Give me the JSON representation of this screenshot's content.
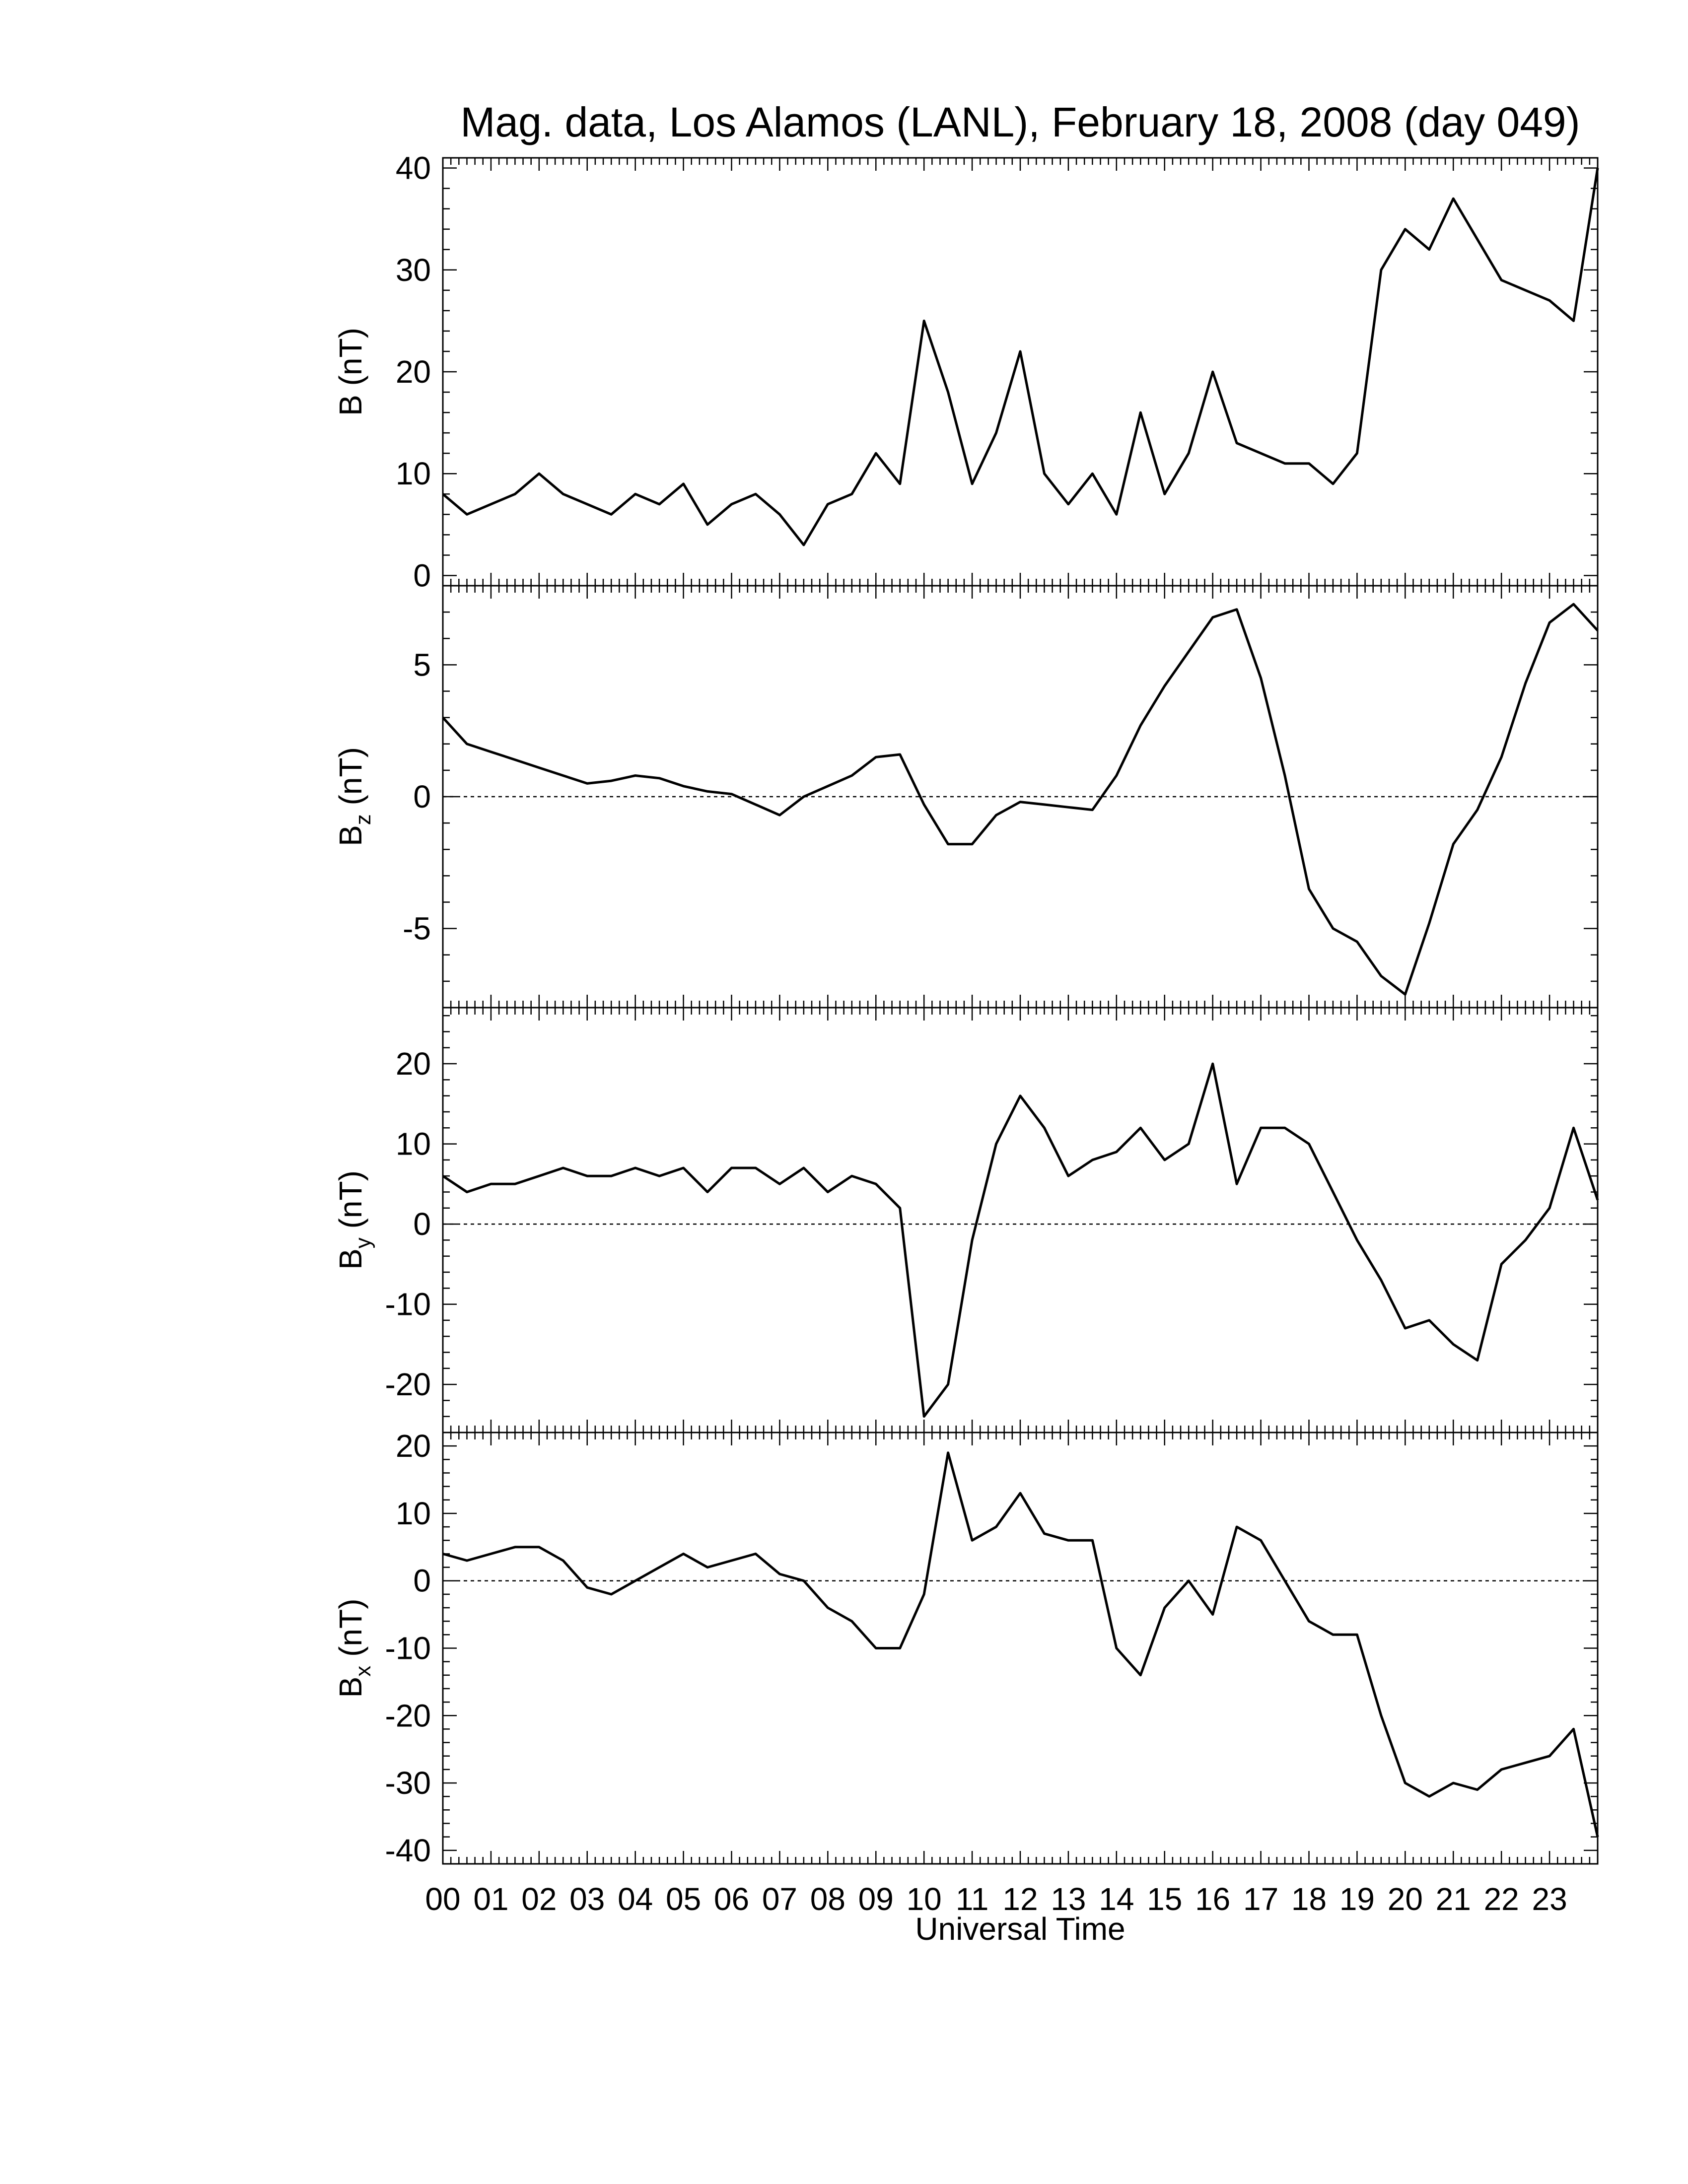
{
  "figure": {
    "title": "Mag. data, Los Alamos (LANL), February 18, 2008 (day 049)",
    "xlabel": "Universal Time"
  },
  "chart_data": [
    {
      "type": "line",
      "panel": "B",
      "ylabel": "B (nT)",
      "ylabel_main": "B (nT)",
      "ylabel_sub": "",
      "ylim": [
        -1,
        41
      ],
      "xlim": [
        0,
        24
      ],
      "yticks": [
        0,
        10,
        20,
        30,
        40
      ],
      "zero_line": false,
      "x": [
        0,
        0.5,
        1,
        1.5,
        2,
        2.5,
        3,
        3.5,
        4,
        4.5,
        5,
        5.5,
        6,
        6.5,
        7,
        7.5,
        8,
        8.5,
        9,
        9.5,
        10,
        10.5,
        11,
        11.5,
        12,
        12.5,
        13,
        13.5,
        14,
        14.5,
        15,
        15.5,
        16,
        16.5,
        17,
        17.5,
        18,
        18.5,
        19,
        19.5,
        20,
        20.5,
        21,
        21.5,
        22,
        22.5,
        23,
        23.5,
        24
      ],
      "series": [
        {
          "values": [
            8,
            6,
            7,
            8,
            10,
            8,
            7,
            6,
            8,
            7,
            9,
            5,
            7,
            8,
            6,
            3,
            7,
            8,
            12,
            9,
            25,
            18,
            9,
            14,
            22,
            10,
            7,
            10,
            6,
            16,
            8,
            12,
            20,
            13,
            12,
            11,
            11,
            9,
            12,
            30,
            34,
            32,
            37,
            33,
            29,
            28,
            27,
            25,
            40
          ]
        }
      ]
    },
    {
      "type": "line",
      "panel": "Bz",
      "ylabel": "Bz (nT)",
      "ylabel_main": "B",
      "ylabel_sub": "z",
      "ylabel_rest": " (nT)",
      "ylim": [
        -8,
        8
      ],
      "xlim": [
        0,
        24
      ],
      "yticks": [
        -5,
        0,
        5
      ],
      "zero_line": true,
      "x": [
        0,
        0.5,
        1,
        1.5,
        2,
        2.5,
        3,
        3.5,
        4,
        4.5,
        5,
        5.5,
        6,
        6.5,
        7,
        7.5,
        8,
        8.5,
        9,
        9.5,
        10,
        10.5,
        11,
        11.5,
        12,
        12.5,
        13,
        13.5,
        14,
        14.5,
        15,
        15.5,
        16,
        16.5,
        17,
        17.5,
        18,
        18.5,
        19,
        19.5,
        20,
        20.5,
        21,
        21.5,
        22,
        22.5,
        23,
        23.5,
        24
      ],
      "series": [
        {
          "values": [
            3,
            2,
            1.7,
            1.4,
            1.1,
            0.8,
            0.5,
            0.6,
            0.8,
            0.7,
            0.4,
            0.2,
            0.1,
            -0.3,
            -0.7,
            0,
            0.4,
            0.8,
            1.5,
            1.6,
            -0.3,
            -1.8,
            -1.8,
            -0.7,
            -0.2,
            -0.3,
            -0.4,
            -0.5,
            0.8,
            2.7,
            4.2,
            5.5,
            6.8,
            7.1,
            4.5,
            0.8,
            -3.5,
            -5,
            -5.5,
            -6.8,
            -7.5,
            -4.8,
            -1.8,
            -0.5,
            1.5,
            4.3,
            6.6,
            7.3,
            6.3
          ]
        }
      ]
    },
    {
      "type": "line",
      "panel": "By",
      "ylabel": "By (nT)",
      "ylabel_main": "B",
      "ylabel_sub": "y",
      "ylabel_rest": " (nT)",
      "ylim": [
        -26,
        27
      ],
      "xlim": [
        0,
        24
      ],
      "yticks": [
        -20,
        -10,
        0,
        10,
        20
      ],
      "zero_line": true,
      "x": [
        0,
        0.5,
        1,
        1.5,
        2,
        2.5,
        3,
        3.5,
        4,
        4.5,
        5,
        5.5,
        6,
        6.5,
        7,
        7.5,
        8,
        8.5,
        9,
        9.5,
        10,
        10.5,
        11,
        11.5,
        12,
        12.5,
        13,
        13.5,
        14,
        14.5,
        15,
        15.5,
        16,
        16.5,
        17,
        17.5,
        18,
        18.5,
        19,
        19.5,
        20,
        20.5,
        21,
        21.5,
        22,
        22.5,
        23,
        23.5,
        24
      ],
      "series": [
        {
          "values": [
            6,
            4,
            5,
            5,
            6,
            7,
            6,
            6,
            7,
            6,
            7,
            4,
            7,
            7,
            5,
            7,
            4,
            6,
            5,
            2,
            -24,
            -20,
            -2,
            10,
            16,
            12,
            6,
            8,
            9,
            12,
            8,
            10,
            20,
            5,
            12,
            12,
            10,
            4,
            -2,
            -7,
            -13,
            -12,
            -15,
            -17,
            -5,
            -2,
            2,
            12,
            3
          ]
        }
      ]
    },
    {
      "type": "line",
      "panel": "Bx",
      "ylabel": "Bx (nT)",
      "ylabel_main": "B",
      "ylabel_sub": "x",
      "ylabel_rest": " (nT)",
      "ylim": [
        -42,
        22
      ],
      "xlim": [
        0,
        24
      ],
      "yticks": [
        -40,
        -30,
        -20,
        -10,
        0,
        10,
        20
      ],
      "zero_line": true,
      "x": [
        0,
        0.5,
        1,
        1.5,
        2,
        2.5,
        3,
        3.5,
        4,
        4.5,
        5,
        5.5,
        6,
        6.5,
        7,
        7.5,
        8,
        8.5,
        9,
        9.5,
        10,
        10.5,
        11,
        11.5,
        12,
        12.5,
        13,
        13.5,
        14,
        14.5,
        15,
        15.5,
        16,
        16.5,
        17,
        17.5,
        18,
        18.5,
        19,
        19.5,
        20,
        20.5,
        21,
        21.5,
        22,
        22.5,
        23,
        23.5,
        24
      ],
      "series": [
        {
          "values": [
            4,
            3,
            4,
            5,
            5,
            3,
            -1,
            -2,
            0,
            2,
            4,
            2,
            3,
            4,
            1,
            0,
            -4,
            -6,
            -10,
            -10,
            -2,
            19,
            6,
            8,
            13,
            7,
            6,
            6,
            -10,
            -14,
            -4,
            0,
            -5,
            8,
            6,
            0,
            -6,
            -8,
            -8,
            -20,
            -30,
            -32,
            -30,
            -31,
            -28,
            -27,
            -26,
            -22,
            -38
          ]
        }
      ]
    }
  ],
  "x_axis": {
    "tick_labels": [
      "00",
      "01",
      "02",
      "03",
      "04",
      "05",
      "06",
      "07",
      "08",
      "09",
      "10",
      "11",
      "12",
      "13",
      "14",
      "15",
      "16",
      "17",
      "18",
      "19",
      "20",
      "21",
      "22",
      "23"
    ]
  }
}
